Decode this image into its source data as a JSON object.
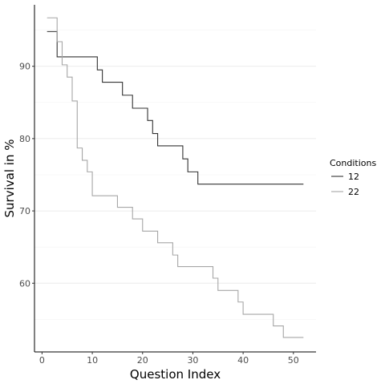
{
  "chart_data": {
    "type": "line",
    "step": true,
    "xlabel": "Question Index",
    "ylabel": "Survival in %",
    "xlim": [
      -1.5,
      54.5
    ],
    "ylim": [
      50.5,
      98.5
    ],
    "xticks": [
      0,
      10,
      20,
      30,
      40,
      50
    ],
    "yticks": [
      60,
      70,
      80,
      90
    ],
    "xtick_labels": [
      "0",
      "10",
      "20",
      "30",
      "40",
      "50"
    ],
    "ytick_labels": [
      "60",
      "70",
      "80",
      "90"
    ],
    "grid": "major and minor horizontal",
    "legend": {
      "title": "Conditions",
      "position": "right",
      "entries": [
        "12",
        "22"
      ]
    },
    "series": [
      {
        "name": "12",
        "color": "#333333",
        "steps": [
          [
            1,
            94.8
          ],
          [
            3,
            91.3
          ],
          [
            11,
            89.5
          ],
          [
            12,
            87.8
          ],
          [
            16,
            86.0
          ],
          [
            18,
            84.2
          ],
          [
            21,
            82.5
          ],
          [
            22,
            80.7
          ],
          [
            23,
            79.0
          ],
          [
            28,
            77.2
          ],
          [
            29,
            75.4
          ],
          [
            31,
            73.7
          ],
          [
            52,
            73.7
          ]
        ]
      },
      {
        "name": "22",
        "color": "#a6a6a6",
        "steps": [
          [
            1,
            96.7
          ],
          [
            3,
            93.4
          ],
          [
            4,
            90.2
          ],
          [
            5,
            88.5
          ],
          [
            6,
            85.2
          ],
          [
            7,
            78.7
          ],
          [
            8,
            77.0
          ],
          [
            9,
            75.4
          ],
          [
            10,
            72.1
          ],
          [
            15,
            70.5
          ],
          [
            18,
            68.9
          ],
          [
            20,
            67.2
          ],
          [
            23,
            65.6
          ],
          [
            26,
            63.9
          ],
          [
            27,
            62.3
          ],
          [
            34,
            60.7
          ],
          [
            35,
            59.0
          ],
          [
            39,
            57.4
          ],
          [
            40,
            55.7
          ],
          [
            46,
            54.1
          ],
          [
            48,
            52.5
          ],
          [
            52,
            52.5
          ]
        ]
      }
    ]
  }
}
